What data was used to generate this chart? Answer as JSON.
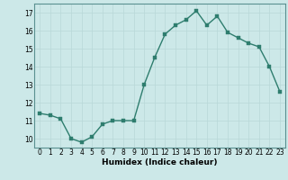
{
  "x": [
    0,
    1,
    2,
    3,
    4,
    5,
    6,
    7,
    8,
    9,
    10,
    11,
    12,
    13,
    14,
    15,
    16,
    17,
    18,
    19,
    20,
    21,
    22,
    23
  ],
  "y": [
    11.4,
    11.3,
    11.1,
    10.0,
    9.8,
    10.1,
    10.8,
    11.0,
    11.0,
    11.0,
    13.0,
    14.5,
    15.8,
    16.3,
    16.6,
    17.1,
    16.3,
    16.8,
    15.9,
    15.6,
    15.3,
    15.1,
    14.0,
    12.6
  ],
  "line_color": "#2e7d6e",
  "marker": "s",
  "marker_size": 2.2,
  "bg_color": "#cce8e8",
  "grid_color": "#b8d8d8",
  "xlabel": "Humidex (Indice chaleur)",
  "ylim": [
    9.5,
    17.5
  ],
  "xlim": [
    -0.5,
    23.5
  ],
  "yticks": [
    10,
    11,
    12,
    13,
    14,
    15,
    16,
    17
  ],
  "xticks": [
    0,
    1,
    2,
    3,
    4,
    5,
    6,
    7,
    8,
    9,
    10,
    11,
    12,
    13,
    14,
    15,
    16,
    17,
    18,
    19,
    20,
    21,
    22,
    23
  ],
  "tick_fontsize": 5.5,
  "xlabel_fontsize": 6.5,
  "linewidth": 1.0,
  "marker_color": "#2e7d6e",
  "spine_color": "#5a9090"
}
